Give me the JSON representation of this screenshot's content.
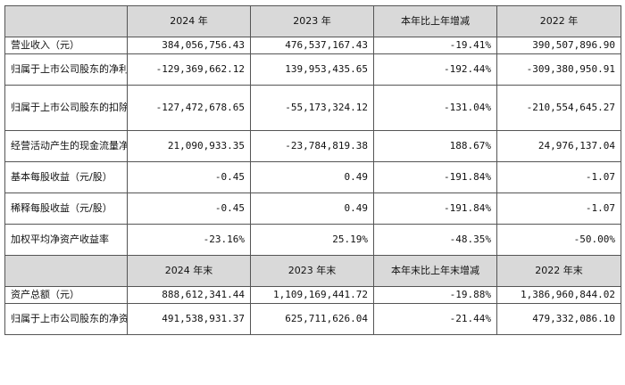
{
  "header1": [
    "2024 年",
    "2023 年",
    "本年比上年增减",
    "2022 年"
  ],
  "header2": [
    "2024 年末",
    "2023 年末",
    "本年末比上年末增减",
    "2022 年末"
  ],
  "rows1": [
    {
      "label": "营业收入（元）",
      "values": [
        "384,056,756.43",
        "476,537,167.43",
        "-19.41%",
        "390,507,896.90"
      ]
    },
    {
      "label": "归属于上市公司股东的净利润（元）",
      "values": [
        "-129,369,662.12",
        "139,953,435.65",
        "-192.44%",
        "-309,380,950.91"
      ]
    },
    {
      "label": "归属于上市公司股东的扣除非经常性损益的净利润（元）",
      "values": [
        "-127,472,678.65",
        "-55,173,324.12",
        "-131.04%",
        "-210,554,645.27"
      ]
    },
    {
      "label": "经营活动产生的现金流量净额（元）",
      "values": [
        "21,090,933.35",
        "-23,784,819.38",
        "188.67%",
        "24,976,137.04"
      ]
    },
    {
      "label": "基本每股收益（元/股）",
      "values": [
        "-0.45",
        "0.49",
        "-191.84%",
        "-1.07"
      ]
    },
    {
      "label": "稀释每股收益（元/股）",
      "values": [
        "-0.45",
        "0.49",
        "-191.84%",
        "-1.07"
      ]
    },
    {
      "label": "加权平均净资产收益率",
      "values": [
        "-23.16%",
        "25.19%",
        "-48.35%",
        "-50.00%"
      ]
    }
  ],
  "rows2": [
    {
      "label": "资产总额（元）",
      "values": [
        "888,612,341.44",
        "1,109,169,441.72",
        "-19.88%",
        "1,386,960,844.02"
      ]
    },
    {
      "label": "归属于上市公司股东的净资产（元）",
      "values": [
        "491,538,931.37",
        "625,711,626.04",
        "-21.44%",
        "479,332,086.10"
      ]
    }
  ]
}
